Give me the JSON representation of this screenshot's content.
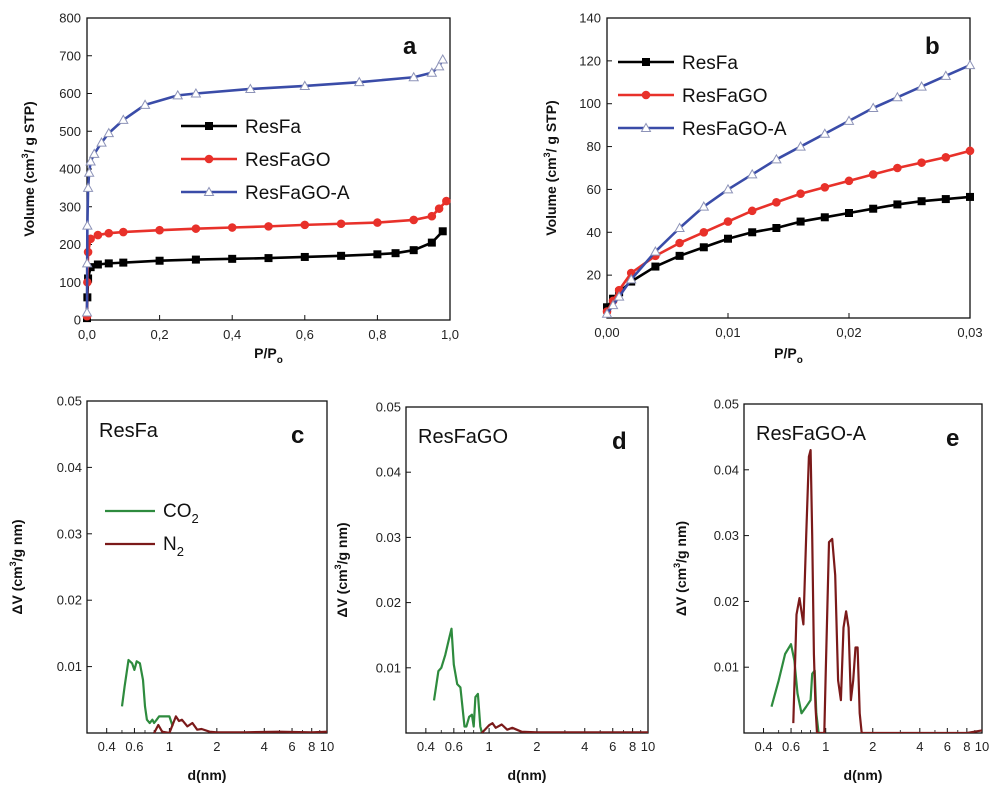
{
  "chart_data": [
    {
      "type": "line",
      "panel": "a",
      "xlabel": "P/Po",
      "ylabel": "Volume (cm3/ g STP)",
      "xlim": [
        0,
        1.0
      ],
      "ylim": [
        0,
        800
      ],
      "xticks": [
        "0,0",
        "0,2",
        "0,4",
        "0,6",
        "0,8",
        "1,0"
      ],
      "yticks": [
        "0",
        "100",
        "200",
        "300",
        "400",
        "500",
        "600",
        "700",
        "800"
      ],
      "legend_position": "center",
      "grid": false,
      "series": [
        {
          "name": "ResFa",
          "color": "#000000",
          "marker": "square",
          "x": [
            0.0,
            0.001,
            0.003,
            0.01,
            0.03,
            0.06,
            0.1,
            0.2,
            0.3,
            0.4,
            0.5,
            0.6,
            0.7,
            0.8,
            0.85,
            0.9,
            0.95,
            0.98
          ],
          "y": [
            5,
            60,
            110,
            140,
            147,
            150,
            152,
            157,
            160,
            162,
            164,
            167,
            170,
            174,
            177,
            185,
            205,
            235
          ]
        },
        {
          "name": "ResFaGO",
          "color": "#e8312a",
          "marker": "circle",
          "x": [
            0.0,
            0.001,
            0.003,
            0.01,
            0.03,
            0.06,
            0.1,
            0.2,
            0.3,
            0.4,
            0.5,
            0.6,
            0.7,
            0.8,
            0.9,
            0.95,
            0.97,
            0.99
          ],
          "y": [
            10,
            100,
            180,
            215,
            225,
            230,
            233,
            238,
            242,
            245,
            248,
            252,
            255,
            258,
            265,
            275,
            295,
            315
          ]
        },
        {
          "name": "ResFaGO-A",
          "color": "#3a4ca8",
          "marker": "triangle",
          "x": [
            0.0,
            0.0005,
            0.001,
            0.003,
            0.006,
            0.01,
            0.02,
            0.04,
            0.06,
            0.1,
            0.16,
            0.25,
            0.3,
            0.45,
            0.6,
            0.75,
            0.9,
            0.95,
            0.97,
            0.98
          ],
          "y": [
            20,
            150,
            250,
            350,
            390,
            420,
            440,
            470,
            495,
            530,
            570,
            595,
            600,
            612,
            620,
            630,
            643,
            655,
            672,
            690
          ]
        }
      ],
      "legend_labels": {
        "s0": "ResFa",
        "s1": "ResFaGO",
        "s2": "ResFaGO-A"
      },
      "letter": "a"
    },
    {
      "type": "line",
      "panel": "b",
      "xlabel": "P/Po",
      "ylabel": "Volume (cm3/ g STP)",
      "xlim": [
        0,
        0.03
      ],
      "ylim": [
        0,
        140
      ],
      "xticks": [
        "0,00",
        "0,01",
        "0,02",
        "0,03"
      ],
      "yticks": [
        "20",
        "40",
        "60",
        "80",
        "100",
        "120",
        "140"
      ],
      "legend_position": "top-left",
      "grid": false,
      "series": [
        {
          "name": "ResFa",
          "color": "#000000",
          "marker": "square",
          "x": [
            0,
            0.0005,
            0.001,
            0.002,
            0.004,
            0.006,
            0.008,
            0.01,
            0.012,
            0.014,
            0.016,
            0.018,
            0.02,
            0.022,
            0.024,
            0.026,
            0.028,
            0.03
          ],
          "y": [
            5,
            9,
            12,
            17,
            24,
            29,
            33,
            37,
            40,
            42,
            45,
            47,
            49,
            51,
            53,
            54.5,
            55.5,
            56.5
          ]
        },
        {
          "name": "ResFaGO",
          "color": "#e8312a",
          "marker": "circle",
          "x": [
            0,
            0.0005,
            0.001,
            0.002,
            0.004,
            0.006,
            0.008,
            0.01,
            0.012,
            0.014,
            0.016,
            0.018,
            0.02,
            0.022,
            0.024,
            0.026,
            0.028,
            0.03
          ],
          "y": [
            3,
            8,
            13,
            21,
            29,
            35,
            40,
            45,
            50,
            54,
            58,
            61,
            64,
            67,
            70,
            72.5,
            75,
            78
          ]
        },
        {
          "name": "ResFaGO-A",
          "color": "#3a4ca8",
          "marker": "triangle",
          "x": [
            0,
            0.0005,
            0.001,
            0.002,
            0.004,
            0.006,
            0.008,
            0.01,
            0.012,
            0.014,
            0.016,
            0.018,
            0.02,
            0.022,
            0.024,
            0.026,
            0.028,
            0.03
          ],
          "y": [
            2,
            6,
            10,
            18,
            31,
            42,
            52,
            60,
            67,
            74,
            80,
            86,
            92,
            98,
            103,
            108,
            113,
            118
          ]
        }
      ],
      "legend_labels": {
        "s0": "ResFa",
        "s1": "ResFaGO",
        "s2": "ResFaGO-A"
      },
      "letter": "b"
    },
    {
      "type": "line",
      "panel": "c",
      "sample": "ResFa",
      "xlabel": "d(nm)",
      "ylabel": "ΔV (cm3/g nm)",
      "xscale": "log",
      "xlim": [
        0.3,
        10
      ],
      "ylim": [
        0,
        0.05
      ],
      "xticks": [
        "0.4",
        "0.6",
        "1",
        "2",
        "4",
        "6",
        "8",
        "10"
      ],
      "yticks": [
        "0.01",
        "0.02",
        "0.03",
        "0.04",
        "0.05"
      ],
      "legend_position": "upper-left",
      "series": [
        {
          "name": "CO2",
          "color": "#2e8b3e",
          "x": [
            0.5,
            0.52,
            0.55,
            0.58,
            0.6,
            0.62,
            0.65,
            0.68,
            0.7,
            0.72,
            0.75,
            0.78,
            0.8,
            0.83,
            0.86,
            0.9,
            0.95,
            1.0,
            1.05
          ],
          "y": [
            0.004,
            0.007,
            0.011,
            0.0105,
            0.0095,
            0.0108,
            0.0105,
            0.008,
            0.004,
            0.002,
            0.0015,
            0.002,
            0.0015,
            0.002,
            0.0025,
            0.0025,
            0.0025,
            0.0025,
            0.001
          ]
        },
        {
          "name": "N2",
          "color": "#7b1a1a",
          "x": [
            0.8,
            0.85,
            0.9,
            1.0,
            1.1,
            1.15,
            1.2,
            1.3,
            1.4,
            1.5,
            1.6,
            1.8,
            2,
            3,
            5,
            8,
            10
          ],
          "y": [
            0.0,
            0.0012,
            0.0002,
            0.0,
            0.0025,
            0.0018,
            0.002,
            0.001,
            0.0015,
            0.0005,
            0.0006,
            0.0002,
            0.0001,
            0.0001,
            0.0002,
            0.0001,
            0.0002
          ]
        }
      ],
      "legend_labels": {
        "s0": "CO",
        "s0sub": "2",
        "s1": "N",
        "s1sub": "2"
      },
      "letter": "c"
    },
    {
      "type": "line",
      "panel": "d",
      "sample": "ResFaGO",
      "xlabel": "d(nm)",
      "ylabel": "ΔV (cm3/g nm)",
      "xscale": "log",
      "xlim": [
        0.3,
        10
      ],
      "ylim": [
        0,
        0.05
      ],
      "xticks": [
        "0.4",
        "0.6",
        "1",
        "2",
        "4",
        "6",
        "8",
        "10"
      ],
      "yticks": [
        "0.01",
        "0.02",
        "0.03",
        "0.04",
        "0.05"
      ],
      "series": [
        {
          "name": "CO2",
          "color": "#2e8b3e",
          "x": [
            0.45,
            0.48,
            0.5,
            0.53,
            0.56,
            0.58,
            0.6,
            0.63,
            0.66,
            0.7,
            0.72,
            0.75,
            0.78,
            0.8,
            0.82,
            0.85,
            0.88,
            0.9
          ],
          "y": [
            0.005,
            0.0095,
            0.01,
            0.012,
            0.0145,
            0.016,
            0.0105,
            0.0075,
            0.007,
            0.001,
            0.001,
            0.0025,
            0.0028,
            0.001,
            0.0055,
            0.006,
            0.001,
            0.0001
          ]
        },
        {
          "name": "N2",
          "color": "#7b1a1a",
          "x": [
            0.9,
            1.0,
            1.05,
            1.1,
            1.2,
            1.3,
            1.4,
            1.6,
            2,
            3,
            5,
            8,
            10
          ],
          "y": [
            0.0,
            0.0012,
            0.0015,
            0.0008,
            0.0013,
            0.0005,
            0.0008,
            0.0002,
            0.0001,
            0.0001,
            0.0001,
            0.0001,
            0.0001
          ]
        }
      ],
      "letter": "d"
    },
    {
      "type": "line",
      "panel": "e",
      "sample": "ResFaGO-A",
      "xlabel": "d(nm)",
      "ylabel": "ΔV (cm3/g nm)",
      "xscale": "log",
      "xlim": [
        0.3,
        10
      ],
      "ylim": [
        0,
        0.05
      ],
      "xticks": [
        "0.4",
        "0.6",
        "1",
        "2",
        "4",
        "6",
        "8",
        "10"
      ],
      "yticks": [
        "0.01",
        "0.02",
        "0.03",
        "0.04",
        "0.05"
      ],
      "series": [
        {
          "name": "CO2",
          "color": "#2e8b3e",
          "x": [
            0.45,
            0.5,
            0.55,
            0.6,
            0.63,
            0.66,
            0.7,
            0.75,
            0.8,
            0.82,
            0.85,
            0.87,
            0.9
          ],
          "y": [
            0.004,
            0.008,
            0.012,
            0.0135,
            0.011,
            0.006,
            0.003,
            0.004,
            0.005,
            0.009,
            0.0095,
            0.003,
            0.0
          ]
        },
        {
          "name": "N2",
          "color": "#7b1a1a",
          "x": [
            0.62,
            0.65,
            0.68,
            0.72,
            0.75,
            0.78,
            0.8,
            0.82,
            0.84,
            0.86,
            0.88,
            0.92,
            0.95,
            0.98,
            1.0,
            1.05,
            1.1,
            1.15,
            1.2,
            1.25,
            1.3,
            1.35,
            1.4,
            1.45,
            1.5,
            1.55,
            1.6,
            1.65,
            1.7,
            1.75,
            1.8,
            1.85,
            1.9,
            2.0,
            3,
            5,
            8,
            10
          ],
          "y": [
            0.0015,
            0.018,
            0.0205,
            0.0165,
            0.03,
            0.042,
            0.043,
            0.03,
            0.012,
            0.004,
            0.0,
            0.0,
            0.0,
            0.0,
            0.009,
            0.029,
            0.0295,
            0.024,
            0.008,
            0.005,
            0.016,
            0.0185,
            0.016,
            0.005,
            0.008,
            0.013,
            0.013,
            0.003,
            0.0,
            0.0,
            0.0,
            0.0,
            0.0,
            0.0,
            0.0,
            0.0,
            0.0,
            0.0004
          ]
        }
      ],
      "letter": "e"
    }
  ]
}
